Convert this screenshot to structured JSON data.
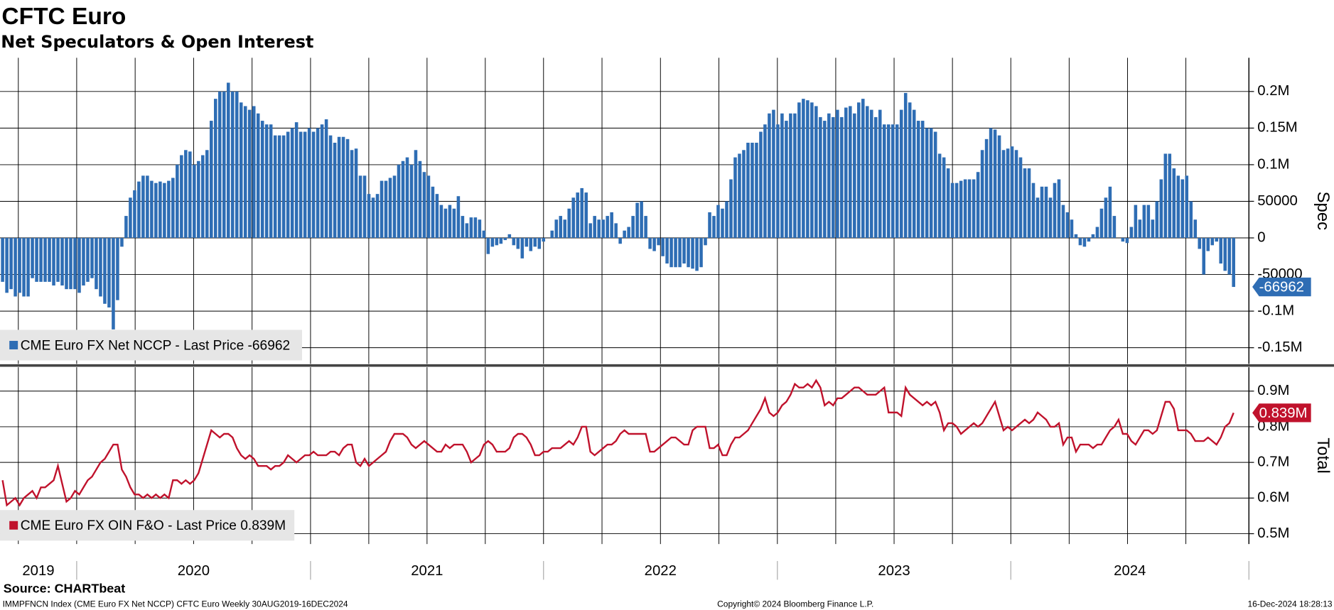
{
  "chart_data": [
    {
      "type": "bar",
      "title": "CFTC Euro",
      "subtitle": "Net Speculators & Open Interest",
      "y_label": "Spec",
      "ylim": [
        -172000,
        246000
      ],
      "yticks": [
        {
          "value": 200000,
          "label": "0.2M"
        },
        {
          "value": 150000,
          "label": "0.15M"
        },
        {
          "value": 100000,
          "label": "0.1M"
        },
        50000,
        0,
        -50000,
        {
          "value": -100000,
          "label": "-0.1M"
        },
        {
          "value": -150000,
          "label": "-0.15M"
        }
      ],
      "grid": true,
      "series": [
        {
          "name": "CME Euro FX Net NCCP - Last Price -66962",
          "color": "#2e6db4",
          "last_label": "-66962",
          "values": [
            -60000,
            -75000,
            -70000,
            -80000,
            -75000,
            -80000,
            -80000,
            -55000,
            -60000,
            -60000,
            -60000,
            -60000,
            -65000,
            -60000,
            -65000,
            -70000,
            -70000,
            -70000,
            -75000,
            -65000,
            -60000,
            -55000,
            -70000,
            -80000,
            -90000,
            -95000,
            -125000,
            -85000,
            -12000,
            30000,
            55000,
            65000,
            77000,
            85000,
            85000,
            78000,
            75000,
            77000,
            75000,
            78000,
            82000,
            100000,
            113000,
            120000,
            118000,
            100000,
            105000,
            113000,
            120000,
            160000,
            190000,
            200000,
            200000,
            212000,
            200000,
            200000,
            185000,
            180000,
            175000,
            180000,
            170000,
            160000,
            155000,
            155000,
            140000,
            140000,
            140000,
            145000,
            150000,
            158000,
            145000,
            145000,
            150000,
            145000,
            150000,
            155000,
            162000,
            140000,
            130000,
            138000,
            138000,
            135000,
            120000,
            122000,
            85000,
            85000,
            60000,
            55000,
            60000,
            78000,
            78000,
            82000,
            85000,
            100000,
            105000,
            110000,
            100000,
            120000,
            105000,
            90000,
            85000,
            70000,
            60000,
            45000,
            40000,
            45000,
            40000,
            57000,
            30000,
            20000,
            28000,
            28000,
            25000,
            10000,
            -22000,
            -12000,
            -10000,
            -8000,
            -3000,
            5000,
            -10000,
            -15000,
            -28000,
            -12000,
            -18000,
            -12000,
            -15000,
            -5000,
            0,
            10000,
            25000,
            30000,
            25000,
            40000,
            55000,
            62000,
            68000,
            62000,
            20000,
            30000,
            25000,
            25000,
            30000,
            35000,
            20000,
            -8000,
            10000,
            15000,
            30000,
            48000,
            50000,
            30000,
            -15000,
            -18000,
            -10000,
            -25000,
            -35000,
            -40000,
            -40000,
            -40000,
            -35000,
            -40000,
            -42000,
            -45000,
            -40000,
            -10000,
            35000,
            30000,
            45000,
            40000,
            50000,
            80000,
            110000,
            115000,
            120000,
            130000,
            130000,
            130000,
            145000,
            155000,
            170000,
            175000,
            155000,
            170000,
            160000,
            170000,
            170000,
            185000,
            190000,
            188000,
            185000,
            180000,
            165000,
            160000,
            170000,
            165000,
            175000,
            165000,
            178000,
            180000,
            170000,
            185000,
            190000,
            180000,
            175000,
            165000,
            175000,
            155000,
            155000,
            155000,
            155000,
            175000,
            198000,
            185000,
            175000,
            160000,
            160000,
            150000,
            150000,
            145000,
            115000,
            110000,
            95000,
            75000,
            75000,
            78000,
            80000,
            80000,
            80000,
            90000,
            120000,
            135000,
            150000,
            148000,
            140000,
            120000,
            122000,
            125000,
            120000,
            110000,
            95000,
            95000,
            75000,
            55000,
            70000,
            70000,
            55000,
            75000,
            80000,
            45000,
            35000,
            25000,
            5000,
            -10000,
            -12000,
            -5000,
            5000,
            15000,
            40000,
            55000,
            70000,
            30000,
            0,
            -5000,
            -7000,
            15000,
            45000,
            25000,
            45000,
            45000,
            25000,
            50000,
            80000,
            115000,
            115000,
            95000,
            85000,
            80000,
            85000,
            50000,
            25000,
            -15000,
            -50000,
            -18000,
            -10000,
            -5000,
            -35000,
            -45000,
            -50000,
            -66962
          ]
        }
      ]
    },
    {
      "type": "line",
      "y_label": "Total",
      "ylim": [
        0.471,
        0.967
      ],
      "yticks": [
        {
          "value": 0.9,
          "label": "0.9M"
        },
        {
          "value": 0.8,
          "label": "0.8M"
        },
        {
          "value": 0.7,
          "label": "0.7M"
        },
        {
          "value": 0.6,
          "label": "0.6M"
        },
        {
          "value": 0.5,
          "label": "0.5M"
        }
      ],
      "xlim": [
        -0.6,
        292.6
      ],
      "xticks": [
        {
          "value": -37.4,
          "label": "2019"
        },
        {
          "value": 17.4,
          "label": "2020"
        },
        {
          "value": 72.3,
          "label": "2021"
        },
        {
          "value": 127.0,
          "label": "2022"
        },
        {
          "value": 181.9,
          "label": "2023"
        },
        {
          "value": 236.7,
          "label": "2024"
        }
      ],
      "grid": true,
      "series": [
        {
          "name": "CME Euro FX OIN F&O - Last Price 0.839M",
          "color": "#c0122c",
          "last_label": "0.839M",
          "values": [
            0.65,
            0.58,
            0.59,
            0.6,
            0.58,
            0.6,
            0.61,
            0.62,
            0.6,
            0.63,
            0.63,
            0.64,
            0.65,
            0.69,
            0.64,
            0.59,
            0.6,
            0.62,
            0.61,
            0.63,
            0.65,
            0.66,
            0.68,
            0.7,
            0.71,
            0.73,
            0.75,
            0.75,
            0.68,
            0.66,
            0.63,
            0.61,
            0.61,
            0.6,
            0.61,
            0.6,
            0.61,
            0.6,
            0.61,
            0.6,
            0.65,
            0.65,
            0.64,
            0.65,
            0.64,
            0.65,
            0.67,
            0.71,
            0.75,
            0.79,
            0.78,
            0.77,
            0.78,
            0.78,
            0.77,
            0.74,
            0.72,
            0.71,
            0.72,
            0.71,
            0.69,
            0.69,
            0.69,
            0.68,
            0.69,
            0.69,
            0.7,
            0.72,
            0.71,
            0.7,
            0.71,
            0.72,
            0.72,
            0.73,
            0.72,
            0.72,
            0.72,
            0.73,
            0.73,
            0.72,
            0.74,
            0.75,
            0.75,
            0.7,
            0.69,
            0.71,
            0.69,
            0.7,
            0.71,
            0.72,
            0.73,
            0.76,
            0.78,
            0.78,
            0.78,
            0.77,
            0.75,
            0.74,
            0.75,
            0.76,
            0.75,
            0.74,
            0.73,
            0.73,
            0.75,
            0.74,
            0.75,
            0.75,
            0.75,
            0.73,
            0.7,
            0.71,
            0.72,
            0.75,
            0.76,
            0.75,
            0.73,
            0.73,
            0.73,
            0.74,
            0.77,
            0.78,
            0.78,
            0.77,
            0.75,
            0.72,
            0.72,
            0.73,
            0.73,
            0.74,
            0.74,
            0.74,
            0.75,
            0.76,
            0.75,
            0.77,
            0.8,
            0.8,
            0.73,
            0.72,
            0.73,
            0.74,
            0.75,
            0.75,
            0.76,
            0.78,
            0.79,
            0.78,
            0.78,
            0.78,
            0.78,
            0.78,
            0.73,
            0.73,
            0.74,
            0.75,
            0.76,
            0.77,
            0.77,
            0.76,
            0.75,
            0.75,
            0.79,
            0.8,
            0.8,
            0.8,
            0.74,
            0.74,
            0.75,
            0.72,
            0.72,
            0.75,
            0.77,
            0.77,
            0.78,
            0.79,
            0.81,
            0.83,
            0.85,
            0.88,
            0.84,
            0.83,
            0.84,
            0.86,
            0.87,
            0.89,
            0.92,
            0.91,
            0.91,
            0.92,
            0.91,
            0.93,
            0.91,
            0.86,
            0.87,
            0.86,
            0.88,
            0.88,
            0.89,
            0.9,
            0.91,
            0.91,
            0.9,
            0.89,
            0.89,
            0.89,
            0.9,
            0.91,
            0.84,
            0.84,
            0.84,
            0.83,
            0.91,
            0.89,
            0.88,
            0.87,
            0.86,
            0.87,
            0.86,
            0.87,
            0.84,
            0.79,
            0.81,
            0.81,
            0.8,
            0.78,
            0.79,
            0.8,
            0.81,
            0.8,
            0.81,
            0.83,
            0.85,
            0.87,
            0.83,
            0.79,
            0.8,
            0.79,
            0.8,
            0.81,
            0.82,
            0.81,
            0.82,
            0.84,
            0.83,
            0.82,
            0.8,
            0.8,
            0.81,
            0.75,
            0.77,
            0.77,
            0.73,
            0.75,
            0.75,
            0.75,
            0.74,
            0.75,
            0.75,
            0.77,
            0.79,
            0.8,
            0.82,
            0.78,
            0.78,
            0.76,
            0.75,
            0.77,
            0.79,
            0.79,
            0.78,
            0.79,
            0.83,
            0.87,
            0.87,
            0.85,
            0.79,
            0.79,
            0.79,
            0.78,
            0.76,
            0.76,
            0.76,
            0.77,
            0.76,
            0.75,
            0.77,
            0.8,
            0.81,
            0.839
          ]
        }
      ]
    }
  ],
  "footer": {
    "source": "Source: CHARTbeat",
    "ticker": "IMMPFNCN Index (CME Euro FX Net NCCP) CFTC Euro  Weekly 30AUG2019-16DEC2024",
    "copyright": "Copyright© 2024 Bloomberg Finance L.P.",
    "timestamp": "16-Dec-2024 18:28:13"
  }
}
